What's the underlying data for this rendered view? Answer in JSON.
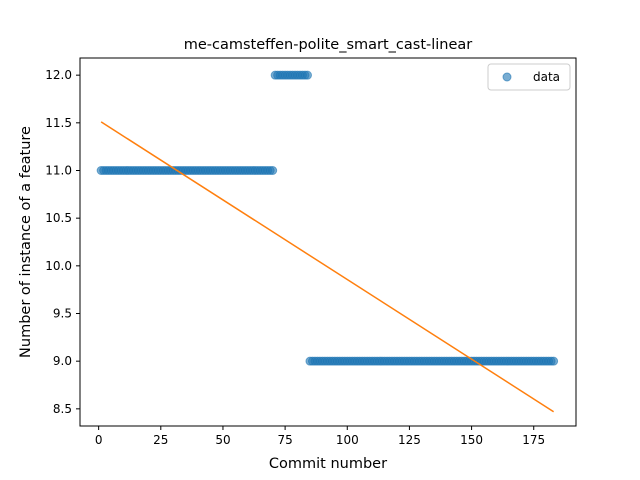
{
  "chart_data": {
    "type": "scatter",
    "title": "me-camsteffen-polite_smart_cast-linear",
    "xlabel": "Commit number",
    "ylabel": "Number of instance of a feature",
    "xlim": [
      -7.5,
      192
    ],
    "ylim": [
      8.32,
      12.18
    ],
    "xticks": [
      0,
      25,
      50,
      75,
      100,
      125,
      150,
      175
    ],
    "yticks": [
      8.5,
      9.0,
      9.5,
      10.0,
      10.5,
      11.0,
      11.5,
      12.0
    ],
    "xtick_labels": [
      "0",
      "25",
      "50",
      "75",
      "100",
      "125",
      "150",
      "175"
    ],
    "ytick_labels": [
      "8.5",
      "9.0",
      "9.5",
      "10.0",
      "10.5",
      "11.0",
      "11.5",
      "12.0"
    ],
    "legend": {
      "position": "top-right",
      "entries": [
        "data"
      ]
    },
    "grid": false,
    "series": [
      {
        "name": "data",
        "kind": "scatter",
        "color": "#1f77b4",
        "alpha": 0.6,
        "segments": [
          {
            "x_start": 1,
            "x_end": 70,
            "y": 11.0
          },
          {
            "x_start": 71,
            "x_end": 84,
            "y": 12.0
          },
          {
            "x_start": 85,
            "x_end": 183,
            "y": 9.0
          }
        ]
      },
      {
        "kind": "line",
        "color": "#ff7f0e",
        "x": [
          1,
          183
        ],
        "y": [
          11.51,
          8.47
        ]
      }
    ]
  }
}
